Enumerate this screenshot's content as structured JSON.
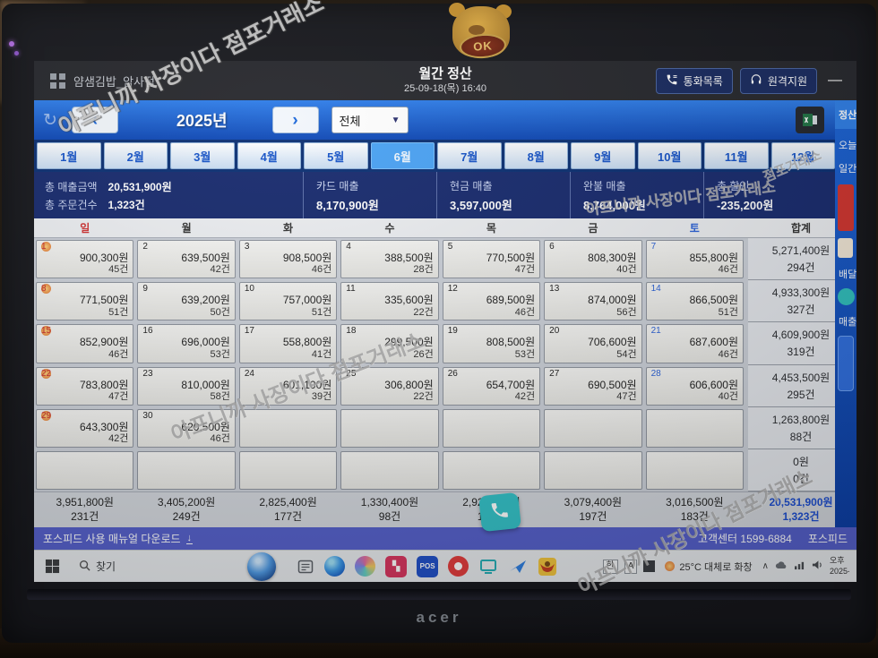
{
  "photo": {
    "watermark": "아프니까 사장이다 점포거래소",
    "watermark_short": "점포거래소",
    "laptop_brand": "acer",
    "sticker_label": "OK"
  },
  "header": {
    "store_name": "얌샘김밥_암사점",
    "title": "월간 정산",
    "datetime": "25-09-18(목) 16:40",
    "call_list_label": "통화목록",
    "remote_support_label": "원격지원",
    "minimize_glyph": "—"
  },
  "year_nav": {
    "refresh_glyph": "↻",
    "prev_glyph": "‹",
    "next_glyph": "›",
    "year_label": "2025년",
    "filter_value": "전체",
    "caret_glyph": "▼"
  },
  "month_tabs": {
    "labels": [
      "1월",
      "2월",
      "3월",
      "4월",
      "5월",
      "6월",
      "7월",
      "8월",
      "9월",
      "10월",
      "11월",
      "12월"
    ],
    "selected": "6월"
  },
  "summary": {
    "total_sales_label": "총 매출금액",
    "total_sales_value": "20,531,900원",
    "total_orders_label": "총 주문건수",
    "total_orders_value": "1,323건",
    "card_label": "카드 매출",
    "card_value": "8,170,900원",
    "cash_label": "현금 매출",
    "cash_value": "3,597,000원",
    "paid_label": "완불 매출",
    "paid_value": "8,764,000원",
    "discount_label": "총 할인",
    "discount_value": "-235,200원"
  },
  "calendar": {
    "weekday_headers": [
      "일",
      "월",
      "화",
      "수",
      "목",
      "금",
      "토",
      "합계"
    ],
    "weeks": [
      {
        "days": [
          {
            "n": "1",
            "a": "900,300원",
            "c": "45건"
          },
          {
            "n": "2",
            "a": "639,500원",
            "c": "42건"
          },
          {
            "n": "3",
            "a": "908,500원",
            "c": "46건"
          },
          {
            "n": "4",
            "a": "388,500원",
            "c": "28건"
          },
          {
            "n": "5",
            "a": "770,500원",
            "c": "47건"
          },
          {
            "n": "6",
            "a": "808,300원",
            "c": "40건"
          },
          {
            "n": "7",
            "a": "855,800원",
            "c": "46건"
          }
        ],
        "ta": "5,271,400원",
        "tc": "294건"
      },
      {
        "days": [
          {
            "n": "8",
            "a": "771,500원",
            "c": "51건"
          },
          {
            "n": "9",
            "a": "639,200원",
            "c": "50건"
          },
          {
            "n": "10",
            "a": "757,000원",
            "c": "51건"
          },
          {
            "n": "11",
            "a": "335,600원",
            "c": "22건"
          },
          {
            "n": "12",
            "a": "689,500원",
            "c": "46건"
          },
          {
            "n": "13",
            "a": "874,000원",
            "c": "56건"
          },
          {
            "n": "14",
            "a": "866,500원",
            "c": "51건"
          }
        ],
        "ta": "4,933,300원",
        "tc": "327건"
      },
      {
        "days": [
          {
            "n": "15",
            "a": "852,900원",
            "c": "46건"
          },
          {
            "n": "16",
            "a": "696,000원",
            "c": "53건"
          },
          {
            "n": "17",
            "a": "558,800원",
            "c": "41건"
          },
          {
            "n": "18",
            "a": "299,500원",
            "c": "26건"
          },
          {
            "n": "19",
            "a": "808,500원",
            "c": "53건"
          },
          {
            "n": "20",
            "a": "706,600원",
            "c": "54건"
          },
          {
            "n": "21",
            "a": "687,600원",
            "c": "46건"
          }
        ],
        "ta": "4,609,900원",
        "tc": "319건"
      },
      {
        "days": [
          {
            "n": "22",
            "a": "783,800원",
            "c": "47건"
          },
          {
            "n": "23",
            "a": "810,000원",
            "c": "58건"
          },
          {
            "n": "24",
            "a": "601,100원",
            "c": "39건"
          },
          {
            "n": "25",
            "a": "306,800원",
            "c": "22건"
          },
          {
            "n": "26",
            "a": "654,700원",
            "c": "42건"
          },
          {
            "n": "27",
            "a": "690,500원",
            "c": "47건"
          },
          {
            "n": "28",
            "a": "606,600원",
            "c": "40건"
          }
        ],
        "ta": "4,453,500원",
        "tc": "295건"
      },
      {
        "days": [
          {
            "n": "29",
            "a": "643,300원",
            "c": "42건"
          },
          {
            "n": "30",
            "a": "620,500원",
            "c": "46건"
          },
          {},
          {},
          {},
          {},
          {}
        ],
        "ta": "1,263,800원",
        "tc": "88건"
      },
      {
        "days": [
          {},
          {},
          {},
          {},
          {},
          {},
          {}
        ],
        "ta": "0원",
        "tc": "0건"
      }
    ],
    "column_totals": [
      {
        "a": "3,951,800원",
        "c": "231건"
      },
      {
        "a": "3,405,200원",
        "c": "249건"
      },
      {
        "a": "2,825,400원",
        "c": "177건"
      },
      {
        "a": "1,330,400원",
        "c": "98건"
      },
      {
        "a": "2,923,200원",
        "c": "188건"
      },
      {
        "a": "3,079,400원",
        "c": "197건"
      },
      {
        "a": "3,016,500원",
        "c": "183건"
      }
    ],
    "grand_total": {
      "a": "20,531,900원",
      "c": "1,323건"
    }
  },
  "sidebar": {
    "header": "정산",
    "items": [
      "오늘",
      "일간",
      "배달",
      "매출"
    ]
  },
  "footer": {
    "manual_label": "포스피드 사용 매뉴얼 다운로드",
    "download_glyph": "↓",
    "support_label": "고객센터 1599-6884",
    "brand": "포스피드"
  },
  "taskbar": {
    "search_label": "찾기",
    "ime_ko": "한",
    "ime_en": "A",
    "weather": "25°C 대체로 화창",
    "chevron": "∧",
    "time_ampm": "오후",
    "time_date": "2025-",
    "apps": [
      {
        "name": "ime-pad-icon",
        "kind": "pad"
      },
      {
        "name": "edge-browser-icon",
        "kind": "edge"
      },
      {
        "name": "color-swirl-app-icon",
        "kind": "swirl"
      },
      {
        "name": "red-badge-app-icon",
        "kind": "square",
        "bg": "#d8355f"
      },
      {
        "name": "pos-app-icon",
        "kind": "square",
        "bg": "#2050c8",
        "label": "POS"
      },
      {
        "name": "red-circle-app-icon",
        "kind": "circle",
        "bg": "#e23c3c"
      },
      {
        "name": "monitor-app-icon",
        "kind": "monitor"
      },
      {
        "name": "blue-bird-app-icon",
        "kind": "bird"
      },
      {
        "name": "eagle-app-icon",
        "kind": "eagle"
      }
    ]
  }
}
